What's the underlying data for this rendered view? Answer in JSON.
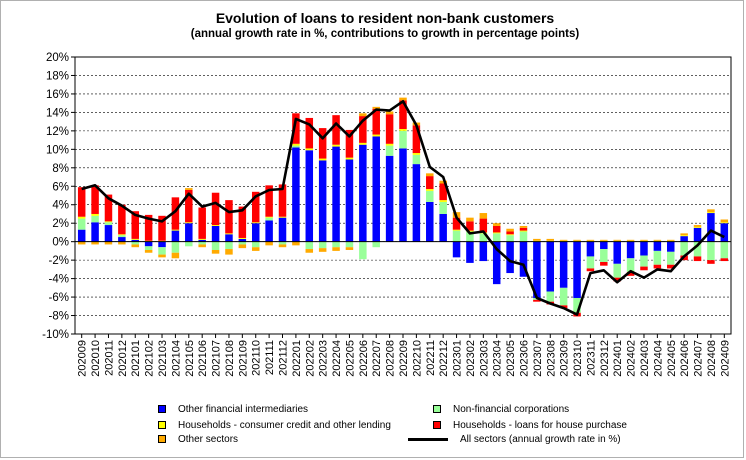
{
  "chart_data": {
    "type": "bar",
    "title": "Evolution of loans to resident non-bank customers",
    "subtitle": "(annual growth rate in %, contributions to growth in percentage points)",
    "ylim": [
      -10,
      20
    ],
    "yticks": [
      "-10%",
      "-8%",
      "-6%",
      "-4%",
      "-2%",
      "0%",
      "2%",
      "4%",
      "6%",
      "8%",
      "10%",
      "12%",
      "14%",
      "16%",
      "18%",
      "20%"
    ],
    "grid": true,
    "stacked": true,
    "categories": [
      "202009",
      "202010",
      "202011",
      "202012",
      "202101",
      "202102",
      "202103",
      "202104",
      "202105",
      "202106",
      "202107",
      "202108",
      "202109",
      "202110",
      "202111",
      "202112",
      "202201",
      "202202",
      "202203",
      "202204",
      "202205",
      "202206",
      "202207",
      "202208",
      "202209",
      "202210",
      "202211",
      "202212",
      "202301",
      "202302",
      "202303",
      "202304",
      "202305",
      "202306",
      "202307",
      "202308",
      "202309",
      "202310",
      "202311",
      "202312",
      "202401",
      "202402",
      "202403",
      "202404",
      "202405",
      "202406",
      "202407",
      "202408",
      "202409"
    ],
    "series": [
      {
        "name": "Other financial intermediaries",
        "color": "#0000ff",
        "values": [
          1.3,
          2.1,
          1.8,
          0.5,
          0.2,
          -0.5,
          -0.6,
          1.2,
          2.0,
          0.2,
          1.7,
          0.8,
          0.3,
          2.0,
          2.3,
          2.6,
          10.2,
          9.9,
          8.8,
          10.3,
          8.9,
          10.5,
          11.4,
          9.3,
          10.1,
          8.4,
          4.3,
          3.0,
          -1.7,
          -2.3,
          -2.1,
          -4.6,
          -3.4,
          -3.8,
          -6.1,
          -5.4,
          -5.0,
          -6.1,
          -1.6,
          -0.8,
          -2.4,
          -1.8,
          -1.5,
          -1.0,
          -1.1,
          0.6,
          1.5,
          3.1,
          2.0
        ]
      },
      {
        "name": "Non-financial corporations",
        "color": "#99ff99",
        "values": [
          1.2,
          0.7,
          0.3,
          0.2,
          -0.3,
          -0.4,
          -0.8,
          -1.2,
          -0.5,
          -0.3,
          -0.9,
          -0.8,
          -0.3,
          -0.6,
          0.3,
          -0.3,
          0.2,
          -0.8,
          -0.7,
          -0.6,
          -0.6,
          -1.9,
          -0.6,
          1.1,
          1.9,
          1.0,
          1.2,
          1.3,
          1.2,
          1.1,
          0.9,
          0.9,
          0.7,
          1.1,
          -0.2,
          -1.1,
          -1.9,
          -1.6,
          -1.3,
          -1.4,
          -1.5,
          -1.5,
          -1.2,
          -1.5,
          -1.4,
          -1.5,
          -1.6,
          -2.0,
          -1.8
        ]
      },
      {
        "name": "Households - consumer credit and other lending",
        "color": "#ffff00",
        "values": [
          0.2,
          0.2,
          0.1,
          0.1,
          0.1,
          0.1,
          0.1,
          0.1,
          0.1,
          0.1,
          0.1,
          0.1,
          0.1,
          0.1,
          0.1,
          0.1,
          0.2,
          0.2,
          0.2,
          0.2,
          0.2,
          0.2,
          0.2,
          0.2,
          0.2,
          0.2,
          0.2,
          0.2,
          0.1,
          0.1,
          0.1,
          0.1,
          0.1,
          0.1,
          0.1,
          0.1,
          0.1,
          0.1,
          0.1,
          0.1,
          0.1,
          0.1,
          0.1,
          0.1,
          0.1,
          0.1,
          0.1,
          0.1,
          0.1
        ]
      },
      {
        "name": "Households - loans for house purchase",
        "color": "#ff0000",
        "values": [
          3.2,
          3.1,
          2.9,
          3.2,
          3.0,
          2.8,
          2.7,
          3.5,
          3.5,
          3.4,
          3.5,
          3.6,
          3.4,
          3.3,
          3.4,
          3.5,
          3.3,
          3.3,
          3.3,
          3.2,
          3.0,
          2.9,
          2.8,
          3.2,
          3.1,
          3.0,
          1.4,
          1.8,
          1.3,
          1.0,
          1.5,
          0.7,
          0.3,
          0.3,
          -0.2,
          -0.3,
          -0.3,
          -0.4,
          -0.3,
          -0.4,
          -0.4,
          -0.4,
          -0.4,
          -0.4,
          -0.4,
          -0.5,
          -0.5,
          -0.4,
          -0.3
        ]
      },
      {
        "name": "Other sectors",
        "color": "#ffaa00",
        "values": [
          -0.3,
          -0.3,
          -0.3,
          -0.3,
          -0.3,
          -0.3,
          -0.3,
          -0.6,
          0.2,
          -0.3,
          -0.4,
          -0.6,
          -0.4,
          -0.4,
          -0.4,
          -0.3,
          -0.4,
          -0.4,
          -0.4,
          -0.4,
          -0.3,
          0.3,
          0.2,
          0.3,
          0.3,
          0.3,
          0.3,
          0.3,
          0.6,
          0.4,
          0.6,
          0.3,
          0.3,
          0.2,
          0.2,
          0.2,
          0.1,
          0.1,
          0.1,
          0.1,
          0.1,
          0.1,
          0.1,
          0.1,
          0.1,
          0.2,
          0.2,
          0.3,
          0.3
        ]
      },
      {
        "name": "All sectors (annual growth rate in %)",
        "type": "line",
        "color": "#000000",
        "values": [
          5.7,
          6.1,
          4.7,
          3.9,
          2.9,
          2.5,
          2.2,
          3.3,
          5.2,
          3.8,
          4.2,
          3.2,
          3.4,
          4.9,
          5.6,
          5.7,
          13.3,
          12.7,
          11.2,
          12.8,
          11.4,
          13.1,
          14.3,
          14.2,
          15.2,
          12.6,
          8.1,
          7.0,
          2.6,
          0.9,
          1.1,
          -0.8,
          -2.1,
          -2.5,
          -6.1,
          -6.7,
          -7.2,
          -7.9,
          -3.4,
          -3.1,
          -4.4,
          -3.2,
          -3.9,
          -3.0,
          -3.2,
          -1.6,
          -0.4,
          1.2,
          0.5
        ]
      }
    ]
  }
}
